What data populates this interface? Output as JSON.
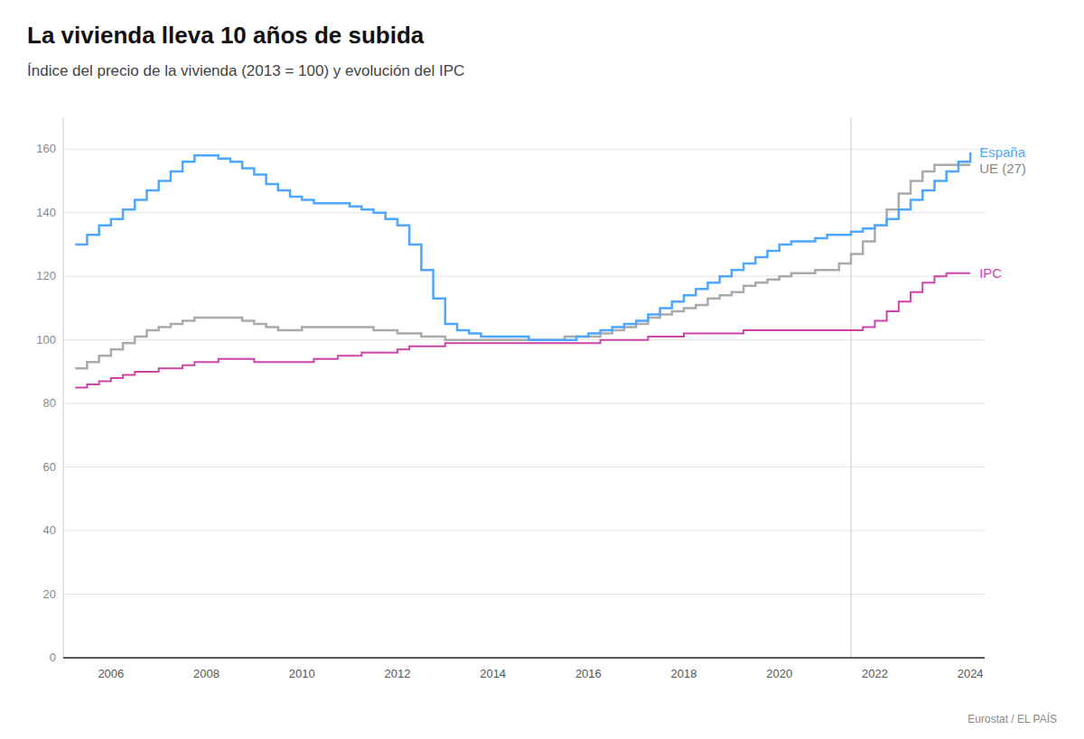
{
  "chart_data": {
    "type": "step",
    "title": "La vivienda lleva 10 años de subida",
    "subtitle": "Índice del precio de la vivienda (2013 = 100) y evolución del IPC",
    "source": "Eurostat / EL PAÍS",
    "x": [
      2005.25,
      2005.5,
      2005.75,
      2006.0,
      2006.25,
      2006.5,
      2006.75,
      2007.0,
      2007.25,
      2007.5,
      2007.75,
      2008.0,
      2008.25,
      2008.5,
      2008.75,
      2009.0,
      2009.25,
      2009.5,
      2009.75,
      2010.0,
      2010.25,
      2010.5,
      2010.75,
      2011.0,
      2011.25,
      2011.5,
      2011.75,
      2012.0,
      2012.25,
      2012.5,
      2012.75,
      2013.0,
      2013.25,
      2013.5,
      2013.75,
      2014.0,
      2014.25,
      2014.5,
      2014.75,
      2015.0,
      2015.25,
      2015.5,
      2015.75,
      2016.0,
      2016.25,
      2016.5,
      2016.75,
      2017.0,
      2017.25,
      2017.5,
      2017.75,
      2018.0,
      2018.25,
      2018.5,
      2018.75,
      2019.0,
      2019.25,
      2019.5,
      2019.75,
      2020.0,
      2020.25,
      2020.5,
      2020.75,
      2021.0,
      2021.25,
      2021.5,
      2021.75,
      2022.0,
      2022.25,
      2022.5,
      2022.75,
      2023.0,
      2023.25,
      2023.5,
      2023.75,
      2024.0
    ],
    "series": [
      {
        "name": "España",
        "color": "#4da6ff",
        "values": [
          130,
          133,
          136,
          138,
          141,
          144,
          147,
          150,
          153,
          156,
          158,
          158,
          157,
          156,
          154,
          152,
          149,
          147,
          145,
          144,
          143,
          143,
          143,
          142,
          141,
          140,
          138,
          136,
          130,
          122,
          113,
          105,
          103,
          102,
          101,
          101,
          101,
          101,
          100,
          100,
          100,
          100,
          101,
          102,
          103,
          104,
          105,
          106,
          108,
          110,
          112,
          114,
          116,
          118,
          120,
          122,
          124,
          126,
          128,
          130,
          131,
          131,
          132,
          133,
          133,
          134,
          135,
          136,
          138,
          141,
          144,
          147,
          150,
          153,
          156,
          159
        ]
      },
      {
        "name": "UE (27)",
        "color": "#aaaaaa",
        "values": [
          91,
          93,
          95,
          97,
          99,
          101,
          103,
          104,
          105,
          106,
          107,
          107,
          107,
          107,
          106,
          105,
          104,
          103,
          103,
          104,
          104,
          104,
          104,
          104,
          104,
          103,
          103,
          102,
          102,
          101,
          101,
          100,
          100,
          100,
          100,
          100,
          100,
          100,
          100,
          100,
          100,
          101,
          101,
          101,
          102,
          103,
          104,
          105,
          107,
          108,
          109,
          110,
          111,
          113,
          114,
          115,
          117,
          118,
          119,
          120,
          121,
          121,
          122,
          122,
          124,
          127,
          131,
          136,
          141,
          146,
          150,
          153,
          155,
          155,
          155,
          155
        ]
      },
      {
        "name": "IPC",
        "color": "#cc44aa",
        "values": [
          85,
          86,
          87,
          88,
          89,
          90,
          90,
          91,
          91,
          92,
          93,
          93,
          94,
          94,
          94,
          93,
          93,
          93,
          93,
          93,
          94,
          94,
          95,
          95,
          96,
          96,
          96,
          97,
          98,
          98,
          98,
          99,
          99,
          99,
          99,
          99,
          99,
          99,
          99,
          99,
          99,
          99,
          99,
          99,
          100,
          100,
          100,
          100,
          101,
          101,
          101,
          102,
          102,
          102,
          102,
          102,
          103,
          103,
          103,
          103,
          103,
          103,
          103,
          103,
          103,
          103,
          104,
          106,
          109,
          112,
          115,
          118,
          120,
          121,
          121,
          121
        ]
      }
    ],
    "vline_x": 2021.5,
    "xlim": [
      2005.0,
      2024.3
    ],
    "xticks": [
      2006,
      2008,
      2010,
      2012,
      2014,
      2016,
      2018,
      2020,
      2022,
      2024
    ],
    "ylim": [
      0,
      170
    ],
    "yticks": [
      0,
      20,
      40,
      60,
      80,
      100,
      120,
      140,
      160
    ],
    "grid": true
  }
}
